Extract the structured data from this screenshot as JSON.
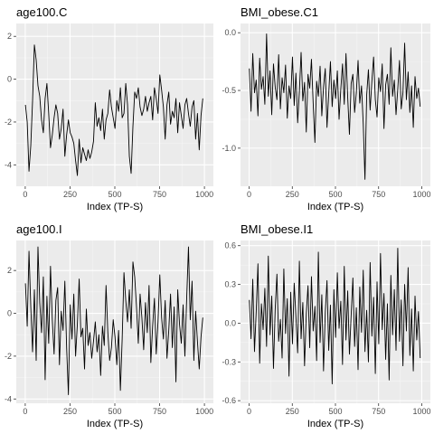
{
  "chart_data": [
    {
      "type": "line",
      "title": "age100.C",
      "xlabel": "Index (TP-S)",
      "ylabel": "",
      "xlim": [
        -50,
        1050
      ],
      "ylim": [
        -5.0,
        2.6
      ],
      "xticks": [
        0,
        250,
        500,
        750,
        1000
      ],
      "yticks": [
        2,
        0,
        -2,
        -4
      ],
      "ytick_labels": [
        "2",
        "0",
        "-2",
        "-4"
      ],
      "grid": true,
      "series": [
        {
          "x_start": 1,
          "x_step": 10,
          "values": [
            -1.2,
            -2.0,
            -4.3,
            -3.1,
            -1.0,
            1.6,
            0.9,
            -0.3,
            -0.8,
            -1.9,
            -2.5,
            -0.9,
            -0.2,
            -1.6,
            -3.2,
            -2.6,
            -1.8,
            -1.2,
            -1.6,
            -2.8,
            -2.3,
            -1.4,
            -3.6,
            -2.6,
            -1.9,
            -2.5,
            -2.7,
            -3.0,
            -3.8,
            -4.5,
            -2.8,
            -3.9,
            -3.2,
            -3.5,
            -3.8,
            -3.3,
            -3.7,
            -3.4,
            -2.9,
            -1.1,
            -2.2,
            -1.8,
            -2.4,
            -1.4,
            -2.8,
            -1.9,
            -1.6,
            -0.5,
            -1.3,
            -1.8,
            -2.3,
            -1.0,
            -1.5,
            -0.4,
            -1.8,
            -1.6,
            -0.2,
            -1.2,
            -3.6,
            -4.4,
            -2.2,
            -0.6,
            -0.9,
            -0.4,
            -1.3,
            -1.7,
            -1.4,
            -0.8,
            -1.5,
            -1.1,
            -0.8,
            -1.9,
            -0.4,
            -0.9,
            -1.6,
            0.2,
            -0.5,
            -1.3,
            -2.8,
            -1.2,
            -0.6,
            -2.1,
            -1.5,
            -1.8,
            -0.9,
            -2.5,
            -1.1,
            -1.7,
            -2.3,
            -1.2,
            -0.9,
            -1.6,
            -2.2,
            -1.3,
            -1.0,
            -2.8,
            -1.6,
            -3.3,
            -1.7,
            -0.9
          ]
        }
      ]
    },
    {
      "type": "line",
      "title": "BMI_obese.C1",
      "xlabel": "Index (TP-S)",
      "ylabel": "",
      "xlim": [
        -50,
        1050
      ],
      "ylim": [
        -1.33,
        0.08
      ],
      "xticks": [
        0,
        250,
        500,
        750,
        1000
      ],
      "yticks": [
        0,
        -0.5,
        -1
      ],
      "ytick_labels": [
        "0.0",
        "-0.5",
        "-1.0"
      ],
      "grid": true,
      "series": [
        {
          "x_start": 1,
          "x_step": 10,
          "values": [
            -0.31,
            -0.68,
            -0.18,
            -0.52,
            -0.41,
            -0.72,
            -0.22,
            -0.49,
            -0.38,
            -0.62,
            -0.01,
            -0.55,
            -0.33,
            -0.71,
            -0.27,
            -0.47,
            -0.58,
            -0.19,
            -0.66,
            -0.39,
            -0.52,
            -0.28,
            -0.74,
            -0.46,
            -0.57,
            -0.21,
            -0.63,
            -0.35,
            -0.78,
            -0.51,
            -0.17,
            -0.59,
            -0.43,
            -0.86,
            -0.36,
            -0.48,
            -0.23,
            -0.61,
            -0.95,
            -0.42,
            -0.55,
            -0.29,
            -0.72,
            -0.47,
            -0.31,
            -0.82,
            -0.53,
            -0.25,
            -0.64,
            -0.41,
            -0.57,
            -0.33,
            -0.75,
            -0.49,
            -0.27,
            -0.62,
            -0.18,
            -0.56,
            -0.88,
            -0.44,
            -0.36,
            -0.69,
            -0.52,
            -0.24,
            -0.61,
            -0.46,
            -0.79,
            -1.27,
            -0.54,
            -0.32,
            -0.67,
            -0.42,
            -0.21,
            -0.58,
            -0.73,
            -0.39,
            -0.51,
            -0.27,
            -0.83,
            -0.45,
            -0.36,
            -0.62,
            -0.13,
            -0.55,
            -0.41,
            -0.71,
            -0.49,
            -0.24,
            -0.66,
            -0.52,
            -0.09,
            -0.58,
            -0.34,
            -0.69,
            -0.46,
            -0.82,
            -0.38,
            -0.57,
            -0.48,
            -0.64
          ]
        }
      ]
    },
    {
      "type": "line",
      "title": "age100.I",
      "xlabel": "Index (TP-S)",
      "ylabel": "",
      "xlim": [
        -50,
        1050
      ],
      "ylim": [
        -4.2,
        3.4
      ],
      "xticks": [
        0,
        250,
        500,
        750,
        1000
      ],
      "yticks": [
        2,
        0,
        -2,
        -4
      ],
      "ytick_labels": [
        "2",
        "0",
        "-2",
        "-4"
      ],
      "grid": true,
      "series": [
        {
          "x_start": 1,
          "x_step": 10,
          "values": [
            1.4,
            -0.6,
            2.9,
            0.3,
            -1.8,
            1.1,
            -2.2,
            3.1,
            0.5,
            -0.9,
            1.7,
            -3.1,
            0.8,
            -1.4,
            2.2,
            -0.3,
            -1.9,
            0.6,
            1.2,
            -2.4,
            0.1,
            -0.8,
            1.5,
            -1.6,
            -3.8,
            0.4,
            -1.2,
            0.9,
            -2.0,
            -0.5,
            1.6,
            -1.1,
            -0.7,
            -2.6,
            0.2,
            -1.5,
            -0.9,
            -2.1,
            -1.3,
            -0.4,
            -1.8,
            -1.0,
            -2.9,
            -0.6,
            -1.5,
            1.3,
            -0.9,
            -2.2,
            -1.6,
            -0.3,
            -1.1,
            -2.4,
            -0.8,
            -3.6,
            -1.2,
            1.9,
            0.6,
            -0.4,
            1.1,
            -0.7,
            2.4,
            1.7,
            0.3,
            -1.4,
            0.9,
            -0.2,
            -1.7,
            0.5,
            -0.9,
            1.3,
            -2.3,
            -0.6,
            0.7,
            -1.9,
            -0.4,
            1.8,
            -0.2,
            -1.2,
            0.6,
            -2.1,
            -0.8,
            0.9,
            -1.6,
            0.3,
            -3.2,
            1.1,
            -0.5,
            -1.4,
            0.4,
            -2.0,
            0.7,
            3.1,
            -0.3,
            1.5,
            -2.2,
            0.1,
            -1.3,
            -2.6,
            -1.1,
            -0.2
          ]
        }
      ]
    },
    {
      "type": "line",
      "title": "BMI_obese.I1",
      "xlabel": "Index (TP-S)",
      "ylabel": "",
      "xlim": [
        -50,
        1050
      ],
      "ylim": [
        -0.62,
        0.64
      ],
      "xticks": [
        0,
        250,
        500,
        750,
        1000
      ],
      "yticks": [
        0.6,
        0.3,
        0,
        -0.3,
        -0.6
      ],
      "ytick_labels": [
        "0.6",
        "0.3",
        "0.0",
        "-0.3",
        "-0.6"
      ],
      "grid": true,
      "series": [
        {
          "x_start": 1,
          "x_step": 10,
          "values": [
            0.18,
            -0.12,
            0.34,
            -0.22,
            0.09,
            0.46,
            -0.31,
            0.15,
            -0.05,
            0.27,
            -0.18,
            0.52,
            -0.09,
            0.21,
            -0.35,
            0.11,
            0.38,
            -0.14,
            0.03,
            -0.27,
            0.42,
            -0.08,
            0.19,
            -0.41,
            0.24,
            -0.16,
            0.31,
            0.05,
            -0.23,
            0.48,
            -0.12,
            0.16,
            -0.33,
            0.07,
            0.29,
            -0.19,
            0.36,
            -0.06,
            0.13,
            -0.29,
            0.55,
            -0.15,
            0.22,
            -0.37,
            0.08,
            0.33,
            -0.21,
            0.14,
            -0.47,
            0.26,
            -0.11,
            0.39,
            -0.04,
            0.17,
            -0.32,
            0.44,
            -0.13,
            0.25,
            -0.24,
            0.06,
            0.35,
            -0.18,
            0.12,
            -0.36,
            0.28,
            -0.07,
            0.41,
            -0.22,
            0.1,
            -0.3,
            0.47,
            -0.1,
            0.2,
            -0.39,
            0.32,
            -0.16,
            0.54,
            -0.05,
            0.23,
            -0.28,
            0.15,
            -0.44,
            0.37,
            -0.09,
            0.26,
            -0.21,
            0.58,
            -0.14,
            0.18,
            -0.33,
            0.3,
            -0.06,
            0.43,
            -0.25,
            0.11,
            -0.37,
            0.21,
            -0.13,
            0.09,
            -0.27
          ]
        }
      ]
    }
  ]
}
